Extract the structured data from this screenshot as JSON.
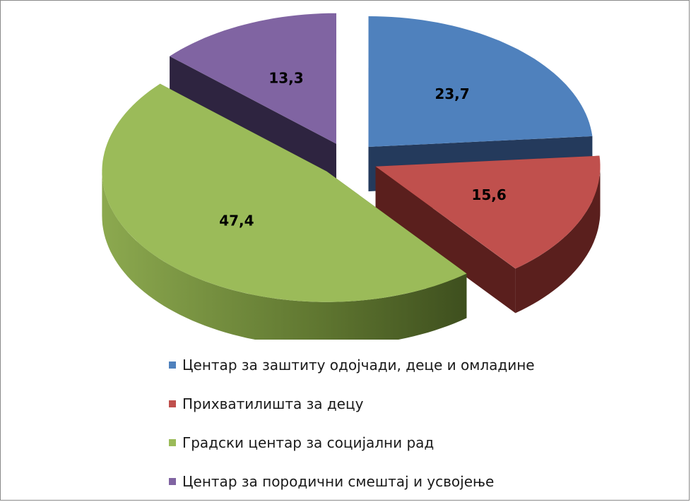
{
  "chart_data": {
    "type": "pie",
    "style": "3d-exploded",
    "title": "",
    "categories": [
      "Центар за заштиту одојчади, деце и омладине",
      "Прихватилишта за децу",
      "Градски центар за социјални рад",
      "Центар за породични смештај и усвојење"
    ],
    "values": [
      23.7,
      15.6,
      47.4,
      13.3
    ],
    "value_labels": [
      "23,7",
      "15,6",
      "47,4",
      "13,3"
    ],
    "colors": [
      "#4F81BD",
      "#C0504D",
      "#9BBB59",
      "#8064A2"
    ],
    "side_colors": [
      "#243A5C",
      "#5A1F1D",
      "#4B5E25",
      "#2E2440"
    ],
    "legend_position": "bottom",
    "legend": [
      {
        "label": "Центар за заштиту одојчади, деце и омладине",
        "color": "#4F81BD"
      },
      {
        "label": "Прихватилишта за децу",
        "color": "#C0504D"
      },
      {
        "label": "Градски центар за социјални рад",
        "color": "#9BBB59"
      },
      {
        "label": "Центар за породични смештај и усвојење",
        "color": "#8064A2"
      }
    ]
  }
}
